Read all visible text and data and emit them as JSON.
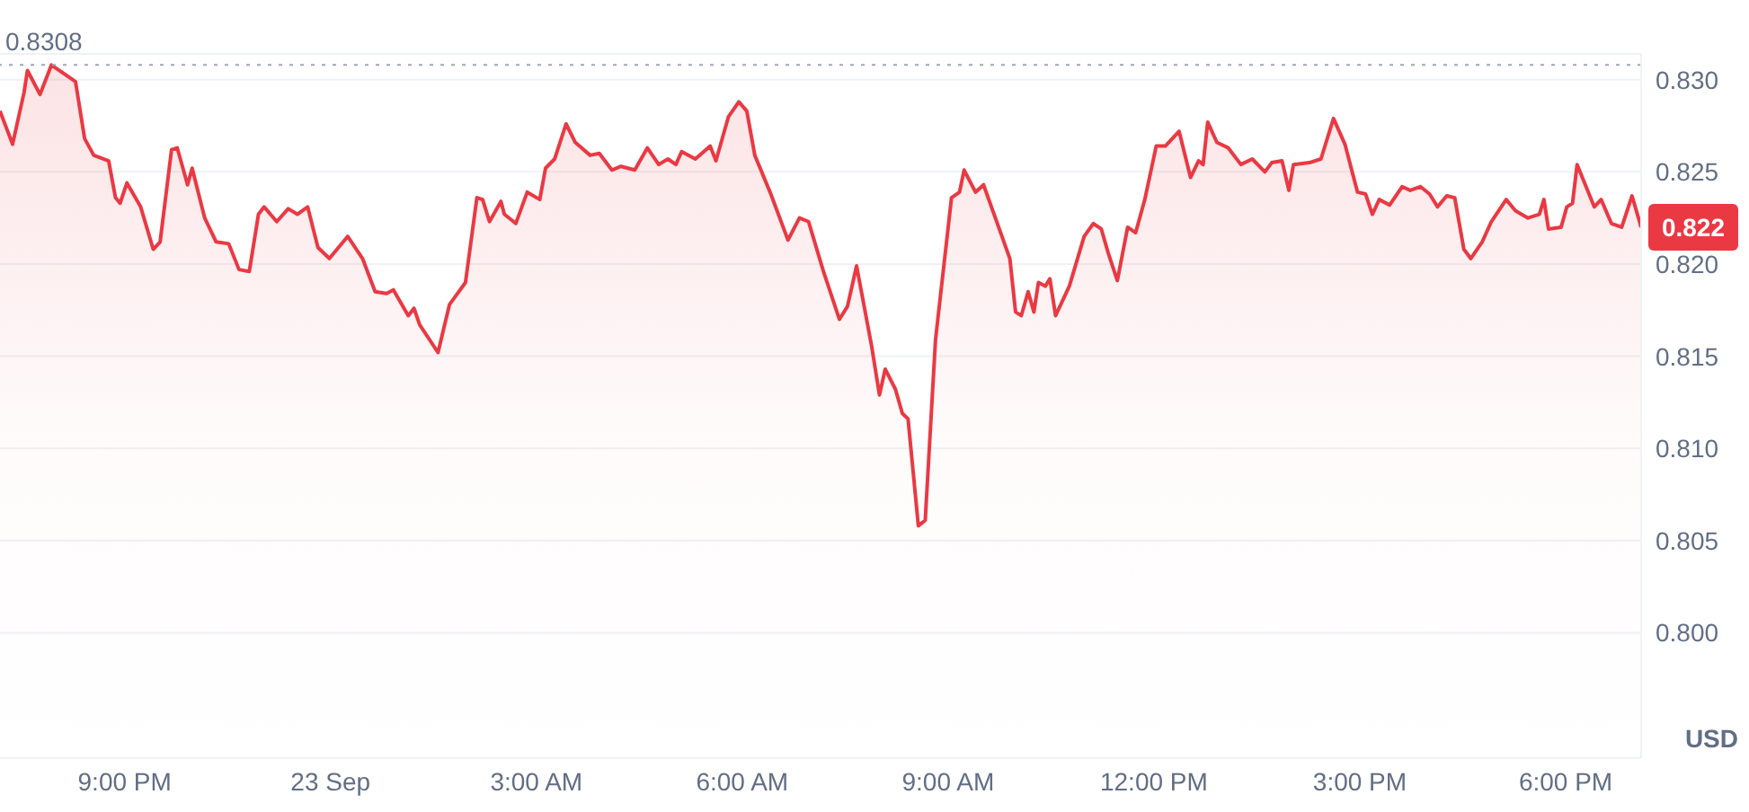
{
  "chart_data": {
    "type": "area",
    "ylabel": "USD",
    "grid": "y",
    "x": [
      "--09-22T19:11",
      "--09-22T19:22",
      "--09-22T19:32",
      "--09-22T19:35",
      "--09-22T19:46",
      "--09-22T19:56",
      "--09-22T20:17",
      "--09-22T20:25",
      "--09-22T20:33",
      "--09-22T20:46",
      "--09-22T20:52",
      "--09-22T20:56",
      "--09-22T21:02",
      "--09-22T21:14",
      "--09-22T21:25",
      "--09-22T21:31",
      "--09-22T21:41",
      "--09-22T21:46",
      "--09-22T21:55",
      "--09-22T21:59",
      "--09-22T22:10",
      "--09-22T22:20",
      "--09-22T22:31",
      "--09-22T22:40",
      "--09-22T22:49",
      "--09-22T22:57",
      "--09-22T23:02",
      "--09-22T23:13",
      "--09-22T23:23",
      "--09-22T23:31",
      "--09-22T23:40",
      "--09-22T23:49",
      "--09-22T23:59",
      "--09-23T00:15",
      "--09-23T00:28",
      "--09-23T00:39",
      "--09-23T00:49",
      "--09-23T00:55",
      "--09-23T01:08",
      "--09-23T01:13",
      "--09-23T01:18",
      "--09-23T01:34",
      "--09-23T01:44",
      "--09-23T01:58",
      "--09-23T02:08",
      "--09-23T02:13",
      "--09-23T02:19",
      "--09-23T02:29",
      "--09-23T02:32",
      "--09-23T02:42",
      "--09-23T02:52",
      "--09-23T03:03",
      "--09-23T03:08",
      "--09-23T03:16",
      "--09-23T03:26",
      "--09-23T03:34",
      "--09-23T03:47",
      "--09-23T03:55",
      "--09-23T04:06",
      "--09-23T04:14",
      "--09-23T04:26",
      "--09-23T04:37",
      "--09-23T04:47",
      "--09-23T04:55",
      "--09-23T05:02",
      "--09-23T05:07",
      "--09-23T05:19",
      "--09-23T05:32",
      "--09-23T05:37",
      "--09-23T05:48",
      "--09-23T05:57",
      "--09-23T06:04",
      "--09-23T06:11",
      "--09-23T06:25",
      "--09-23T06:40",
      "--09-23T06:50",
      "--09-23T06:58",
      "--09-23T07:11",
      "--09-23T07:25",
      "--09-23T07:32",
      "--09-23T07:40",
      "--09-23T07:53",
      "--09-23T08:00",
      "--09-23T08:05",
      "--09-23T08:14",
      "--09-23T08:20",
      "--09-23T08:25",
      "--09-23T08:34",
      "--09-23T08:40",
      "--09-23T08:49",
      "--09-23T09:03",
      "--09-23T09:10",
      "--09-23T09:14",
      "--09-23T09:24",
      "--09-23T09:31",
      "--09-23T09:54",
      "--09-23T09:59",
      "--09-23T10:04",
      "--09-23T10:10",
      "--09-23T10:15",
      "--09-23T10:19",
      "--09-23T10:25",
      "--09-23T10:29",
      "--09-23T10:34",
      "--09-23T10:46",
      "--09-23T10:59",
      "--09-23T11:07",
      "--09-23T11:14",
      "--09-23T11:20",
      "--09-23T11:28",
      "--09-23T11:37",
      "--09-23T11:44",
      "--09-23T11:52",
      "--09-23T12:02",
      "--09-23T12:10",
      "--09-23T12:22",
      "--09-23T12:32",
      "--09-23T12:39",
      "--09-23T12:43",
      "--09-23T12:47",
      "--09-23T12:55",
      "--09-23T13:05",
      "--09-23T13:16",
      "--09-23T13:26",
      "--09-23T13:37",
      "--09-23T13:43",
      "--09-23T13:52",
      "--09-23T13:58",
      "--09-23T14:02",
      "--09-23T14:16",
      "--09-23T14:26",
      "--09-23T14:37",
      "--09-23T14:47",
      "--09-23T14:58",
      "--09-23T15:05",
      "--09-23T15:11",
      "--09-23T15:17",
      "--09-23T15:26",
      "--09-23T15:37",
      "--09-23T15:44",
      "--09-23T15:53",
      "--09-23T16:01",
      "--09-23T16:08",
      "--09-23T16:16",
      "--09-23T16:23",
      "--09-23T16:31",
      "--09-23T16:37",
      "--09-23T16:47",
      "--09-23T16:55",
      "--09-23T17:08",
      "--09-23T17:16",
      "--09-23T17:27",
      "--09-23T17:37",
      "--09-23T17:41",
      "--09-23T17:45",
      "--09-23T17:56",
      "--09-23T18:01",
      "--09-23T18:06",
      "--09-23T18:10",
      "--09-23T18:25",
      "--09-23T18:31",
      "--09-23T18:40",
      "--09-23T18:49",
      "--09-23T18:58",
      "--09-23T19:06"
    ],
    "series": [
      {
        "color": "#ea3943",
        "values": [
          0.8283,
          0.8265,
          0.8293,
          0.8305,
          0.8292,
          0.8308,
          0.8299,
          0.8268,
          0.8259,
          0.8256,
          0.8236,
          0.8233,
          0.8244,
          0.8231,
          0.8208,
          0.8212,
          0.8262,
          0.8263,
          0.8243,
          0.8252,
          0.8225,
          0.8212,
          0.8211,
          0.8197,
          0.8196,
          0.8227,
          0.8231,
          0.8223,
          0.823,
          0.8227,
          0.8231,
          0.8209,
          0.8203,
          0.8215,
          0.8203,
          0.8185,
          0.8184,
          0.8186,
          0.8172,
          0.8176,
          0.8167,
          0.8152,
          0.8178,
          0.819,
          0.8236,
          0.8235,
          0.8223,
          0.8234,
          0.8227,
          0.8222,
          0.8239,
          0.8235,
          0.8252,
          0.8257,
          0.8276,
          0.8266,
          0.8259,
          0.826,
          0.8251,
          0.8253,
          0.8251,
          0.8263,
          0.8254,
          0.8257,
          0.8254,
          0.8261,
          0.8257,
          0.8264,
          0.8256,
          0.828,
          0.8288,
          0.8283,
          0.8259,
          0.8238,
          0.8213,
          0.8225,
          0.8223,
          0.8196,
          0.817,
          0.8177,
          0.8199,
          0.8156,
          0.8129,
          0.8143,
          0.8132,
          0.8119,
          0.8116,
          0.8058,
          0.8061,
          0.8159,
          0.8236,
          0.8239,
          0.8251,
          0.8239,
          0.8243,
          0.8203,
          0.8174,
          0.8172,
          0.8185,
          0.8174,
          0.819,
          0.8188,
          0.8192,
          0.8172,
          0.8188,
          0.8215,
          0.8222,
          0.8219,
          0.8206,
          0.8191,
          0.822,
          0.8217,
          0.8235,
          0.8264,
          0.8264,
          0.8272,
          0.8247,
          0.8256,
          0.8254,
          0.8277,
          0.8266,
          0.8263,
          0.8254,
          0.8257,
          0.825,
          0.8255,
          0.8256,
          0.824,
          0.8254,
          0.8255,
          0.8257,
          0.8279,
          0.8265,
          0.8239,
          0.8238,
          0.8227,
          0.8235,
          0.8232,
          0.8242,
          0.824,
          0.8242,
          0.8238,
          0.8231,
          0.8237,
          0.8236,
          0.8208,
          0.8203,
          0.8212,
          0.8223,
          0.8235,
          0.8229,
          0.8225,
          0.8227,
          0.8235,
          0.8219,
          0.822,
          0.8231,
          0.8233,
          0.8254,
          0.8231,
          0.8235,
          0.8222,
          0.822,
          0.8237,
          0.822
        ]
      }
    ],
    "xlim": [
      "--09-22T19:11",
      "--09-23T19:06"
    ],
    "xticks": [
      {
        "value": "--09-22T21:00",
        "label": "9:00 PM"
      },
      {
        "value": "--09-23T00:00",
        "label": "23 Sep"
      },
      {
        "value": "--09-23T03:00",
        "label": "3:00 AM"
      },
      {
        "value": "--09-23T06:00",
        "label": "6:00 AM"
      },
      {
        "value": "--09-23T09:00",
        "label": "9:00 AM"
      },
      {
        "value": "--09-23T12:00",
        "label": "12:00 PM"
      },
      {
        "value": "--09-23T15:00",
        "label": "3:00 PM"
      },
      {
        "value": "--09-23T18:00",
        "label": "6:00 PM"
      }
    ],
    "ylim": [
      0.7932,
      0.8314
    ],
    "yticks": [
      {
        "value": 0.8,
        "label": "0.800"
      },
      0.805,
      {
        "value": 0.81,
        "label": "0.810"
      },
      0.815,
      {
        "value": 0.82,
        "label": "0.820"
      },
      0.825,
      {
        "value": 0.83,
        "label": "0.830"
      }
    ],
    "ref_lines": [
      {
        "axis": "y",
        "value": 0.8308,
        "label": "0.8308",
        "line_style": "dotted",
        "color": "#a0a7b5"
      }
    ],
    "annotations": [
      {
        "text": "0.822",
        "x": "--09-23T19:06",
        "y": 0.822
      }
    ]
  }
}
